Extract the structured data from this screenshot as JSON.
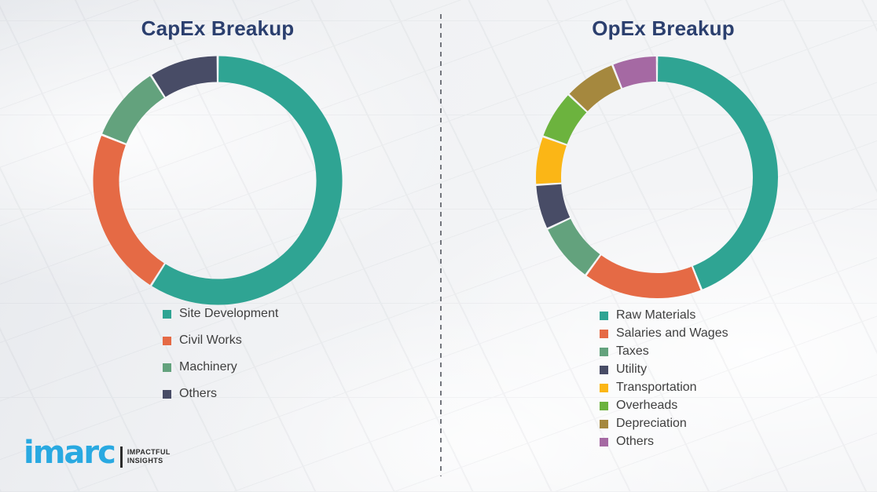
{
  "page": {
    "background_color": "#f3f4f6",
    "divider": {
      "style": "dashed-vertical",
      "color": "#73767d"
    },
    "legend_text_color": "#3f3f3f",
    "title_color": "#2b3f6e"
  },
  "chart_data": [
    {
      "type": "pie",
      "variant": "donut",
      "title": "CapEx Breakup",
      "direction": "clockwise",
      "start_angle_deg": 0,
      "unit": "percent (estimated from arc angles, no labels shown)",
      "legend_position": "below",
      "slices": [
        {
          "label": "Site Development",
          "value": 59,
          "color": "#2FA493"
        },
        {
          "label": "Civil Works",
          "value": 22,
          "color": "#E56A45"
        },
        {
          "label": "Machinery",
          "value": 10,
          "color": "#63A27D"
        },
        {
          "label": "Others",
          "value": 9,
          "color": "#484C66"
        }
      ]
    },
    {
      "type": "pie",
      "variant": "donut",
      "title": "OpEx Breakup",
      "direction": "clockwise",
      "start_angle_deg": 0,
      "unit": "percent (estimated from arc angles, no labels shown)",
      "legend_position": "below",
      "slices": [
        {
          "label": "Raw Materials",
          "value": 44,
          "color": "#2FA493"
        },
        {
          "label": "Salaries and Wages",
          "value": 16,
          "color": "#E56A45"
        },
        {
          "label": "Taxes",
          "value": 8,
          "color": "#63A27D"
        },
        {
          "label": "Utility",
          "value": 6,
          "color": "#484C66"
        },
        {
          "label": "Transportation",
          "value": 6.5,
          "color": "#FBB616"
        },
        {
          "label": "Overheads",
          "value": 6.5,
          "color": "#6CB33E"
        },
        {
          "label": "Depreciation",
          "value": 7,
          "color": "#A5883E"
        },
        {
          "label": "Others",
          "value": 6,
          "color": "#A569A3"
        }
      ]
    }
  ],
  "logo": {
    "wordmark": "imarc",
    "brand_color": "#29a9e1",
    "tagline_line1": "IMPACTFUL",
    "tagline_line2": "INSIGHTS",
    "tagline_color": "#2b2b2b"
  }
}
